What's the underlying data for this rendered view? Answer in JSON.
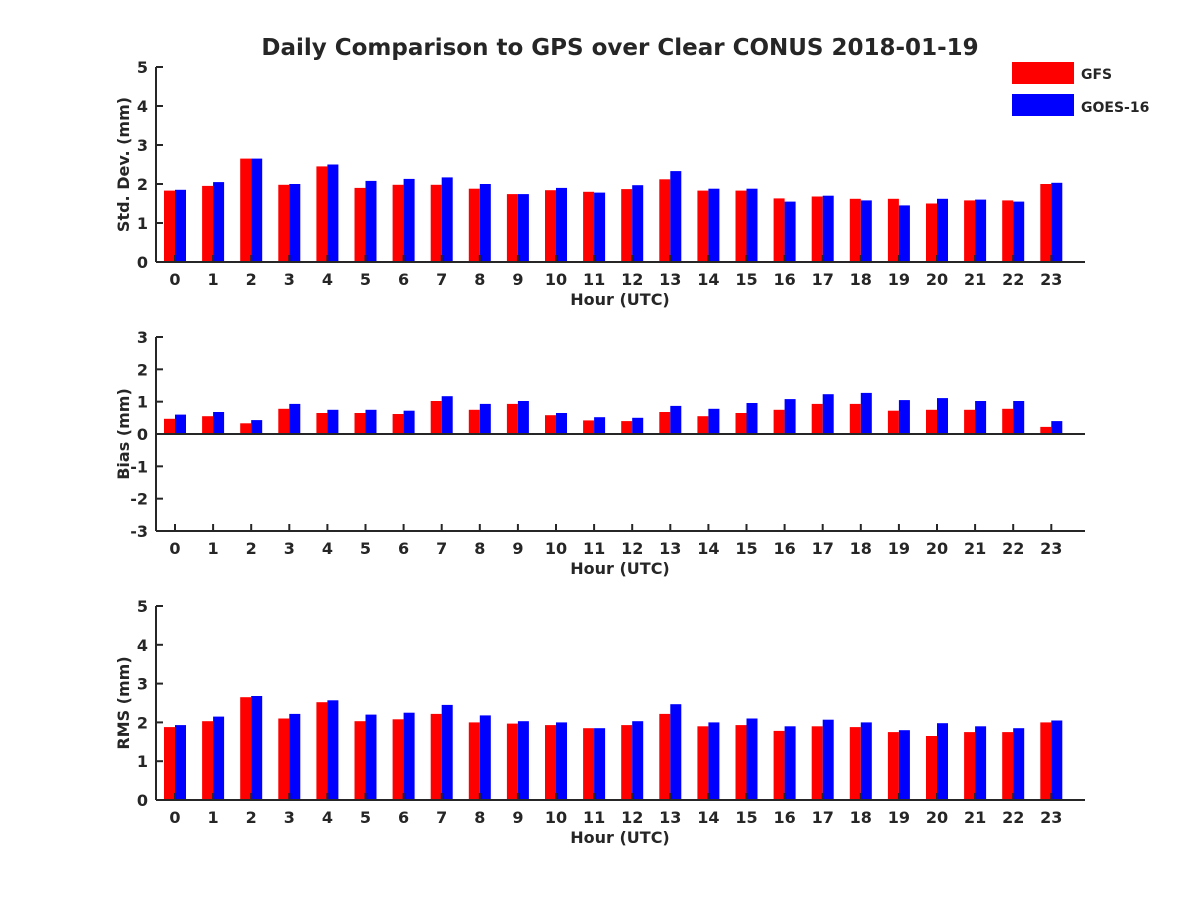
{
  "title": "Daily Comparison to GPS over Clear CONUS 2018-01-19",
  "legend": {
    "items": [
      {
        "label": "GFS",
        "color": "#ff0000"
      },
      {
        "label": "GOES-16",
        "color": "#0000ff"
      }
    ]
  },
  "colors": {
    "gfs": "#ff0000",
    "goes": "#0000ff",
    "axis": "#262626"
  },
  "chart_data": [
    {
      "type": "bar",
      "id": "stddev",
      "ylabel": "Std. Dev. (mm)",
      "xlabel": "Hour (UTC)",
      "ylim": [
        0,
        5
      ],
      "yticks": [
        0,
        1,
        2,
        3,
        4,
        5
      ],
      "categories": [
        "0",
        "1",
        "2",
        "3",
        "4",
        "5",
        "6",
        "7",
        "8",
        "9",
        "10",
        "11",
        "12",
        "13",
        "14",
        "15",
        "16",
        "17",
        "18",
        "19",
        "20",
        "21",
        "22",
        "23"
      ],
      "series": [
        {
          "name": "GFS",
          "values": [
            1.83,
            1.95,
            2.65,
            1.98,
            2.45,
            1.9,
            1.98,
            1.98,
            1.88,
            1.74,
            1.84,
            1.8,
            1.87,
            2.12,
            1.83,
            1.83,
            1.63,
            1.68,
            1.62,
            1.62,
            1.5,
            1.58,
            1.58,
            2.0
          ]
        },
        {
          "name": "GOES-16",
          "values": [
            1.85,
            2.05,
            2.65,
            2.0,
            2.5,
            2.08,
            2.13,
            2.17,
            2.0,
            1.74,
            1.9,
            1.78,
            1.97,
            2.33,
            1.88,
            1.88,
            1.55,
            1.7,
            1.58,
            1.45,
            1.62,
            1.6,
            1.55,
            2.03
          ]
        }
      ]
    },
    {
      "type": "bar",
      "id": "bias",
      "ylabel": "Bias (mm)",
      "xlabel": "Hour (UTC)",
      "ylim": [
        -3,
        3
      ],
      "yticks": [
        -3,
        -2,
        -1,
        0,
        1,
        2,
        3
      ],
      "categories": [
        "0",
        "1",
        "2",
        "3",
        "4",
        "5",
        "6",
        "7",
        "8",
        "9",
        "10",
        "11",
        "12",
        "13",
        "14",
        "15",
        "16",
        "17",
        "18",
        "19",
        "20",
        "21",
        "22",
        "23"
      ],
      "series": [
        {
          "name": "GFS",
          "values": [
            0.47,
            0.55,
            0.33,
            0.78,
            0.65,
            0.65,
            0.62,
            1.02,
            0.75,
            0.93,
            0.58,
            0.42,
            0.4,
            0.68,
            0.55,
            0.65,
            0.75,
            0.93,
            0.93,
            0.72,
            0.75,
            0.75,
            0.78,
            0.22
          ]
        },
        {
          "name": "GOES-16",
          "values": [
            0.6,
            0.68,
            0.43,
            0.93,
            0.75,
            0.75,
            0.72,
            1.17,
            0.93,
            1.02,
            0.65,
            0.52,
            0.5,
            0.87,
            0.78,
            0.96,
            1.08,
            1.23,
            1.27,
            1.05,
            1.11,
            1.02,
            1.02,
            0.4
          ]
        }
      ]
    },
    {
      "type": "bar",
      "id": "rms",
      "ylabel": "RMS (mm)",
      "xlabel": "Hour (UTC)",
      "ylim": [
        0,
        5
      ],
      "yticks": [
        0,
        1,
        2,
        3,
        4,
        5
      ],
      "categories": [
        "0",
        "1",
        "2",
        "3",
        "4",
        "5",
        "6",
        "7",
        "8",
        "9",
        "10",
        "11",
        "12",
        "13",
        "14",
        "15",
        "16",
        "17",
        "18",
        "19",
        "20",
        "21",
        "22",
        "23"
      ],
      "series": [
        {
          "name": "GFS",
          "values": [
            1.88,
            2.03,
            2.65,
            2.1,
            2.52,
            2.03,
            2.08,
            2.22,
            2.0,
            1.97,
            1.93,
            1.85,
            1.93,
            2.22,
            1.9,
            1.93,
            1.78,
            1.9,
            1.88,
            1.75,
            1.65,
            1.75,
            1.75,
            2.0
          ]
        },
        {
          "name": "GOES-16",
          "values": [
            1.93,
            2.15,
            2.68,
            2.22,
            2.57,
            2.2,
            2.25,
            2.45,
            2.18,
            2.03,
            2.0,
            1.85,
            2.03,
            2.47,
            2.0,
            2.1,
            1.9,
            2.07,
            2.0,
            1.8,
            1.98,
            1.9,
            1.85,
            2.05
          ]
        }
      ]
    }
  ]
}
